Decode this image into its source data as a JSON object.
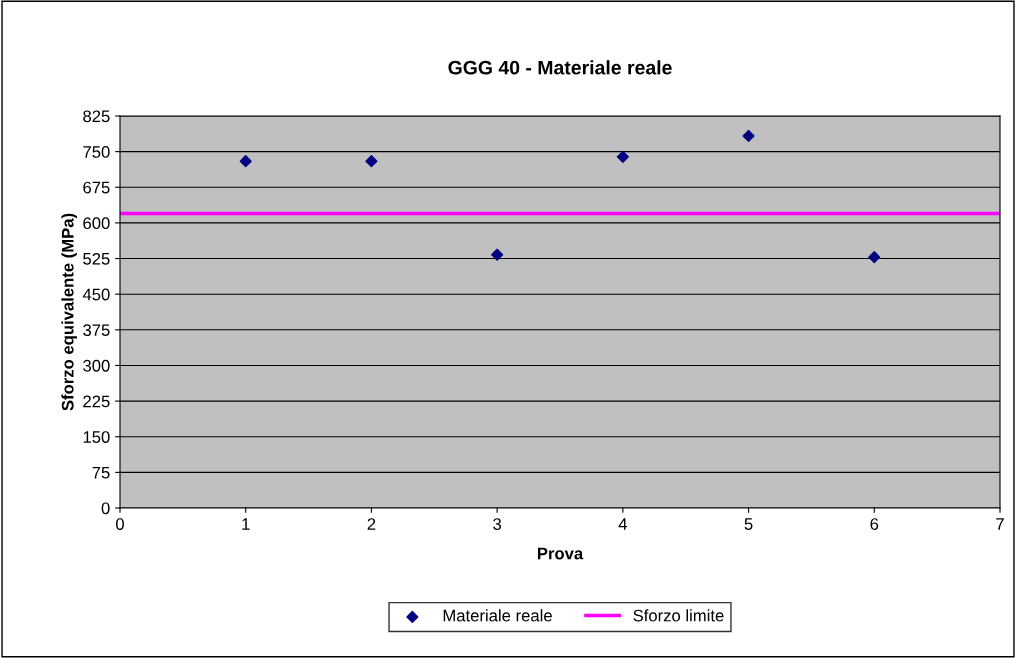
{
  "chart_data": {
    "type": "scatter",
    "title": "GGG 40 - Materiale reale",
    "xlabel": "Prova",
    "ylabel": "Sforzo equivalente (MPa)",
    "x": [
      1,
      2,
      3,
      4,
      5,
      6
    ],
    "series": [
      {
        "name": "Materiale reale",
        "color": "#000080",
        "marker": "diamond",
        "values": [
          730,
          730,
          533,
          739,
          783,
          528
        ]
      }
    ],
    "ref_lines": [
      {
        "axis": "y",
        "value": 620,
        "label": "Sforzo limite",
        "color": "#ff00ff",
        "line_style": "solid"
      }
    ],
    "xlim": [
      0,
      7
    ],
    "xticks": [
      0,
      1,
      2,
      3,
      4,
      5,
      6,
      7
    ],
    "ylim": [
      0,
      825
    ],
    "yticks": [
      0,
      75,
      150,
      225,
      300,
      375,
      450,
      525,
      600,
      675,
      750,
      825
    ],
    "grid": "y",
    "legend": "bottom"
  }
}
